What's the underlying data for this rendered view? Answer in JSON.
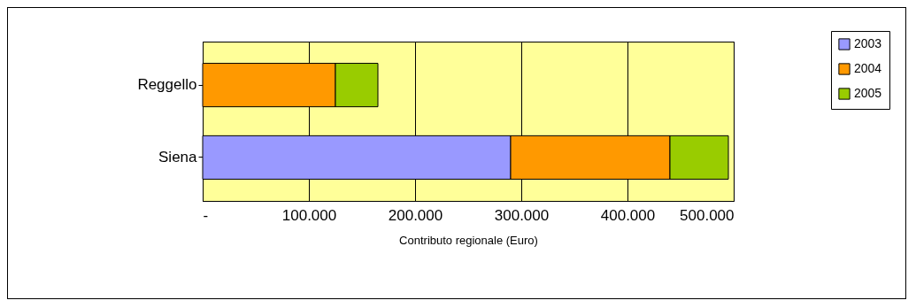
{
  "chart_data": {
    "type": "bar",
    "orientation": "horizontal",
    "stacked": true,
    "xlabel": "Contributo regionale (Euro)",
    "categories": [
      "Reggello",
      "Siena"
    ],
    "series": [
      {
        "name": "2003",
        "color": "#9999ff",
        "values": [
          null,
          290000
        ]
      },
      {
        "name": "2004",
        "color": "#ff9900",
        "values": [
          125000,
          150000
        ]
      },
      {
        "name": "2005",
        "color": "#99cc00",
        "values": [
          40000,
          55000
        ]
      }
    ],
    "xlim": [
      0,
      500000
    ],
    "xticks": [
      {
        "value": 0,
        "label": "-"
      },
      {
        "value": 100000,
        "label": "100.000"
      },
      {
        "value": 200000,
        "label": "200.000"
      },
      {
        "value": 300000,
        "label": "300.000"
      },
      {
        "value": 400000,
        "label": "400.000"
      },
      {
        "value": 500000,
        "label": "500.000"
      }
    ],
    "grid": "x",
    "legend": "top right"
  }
}
